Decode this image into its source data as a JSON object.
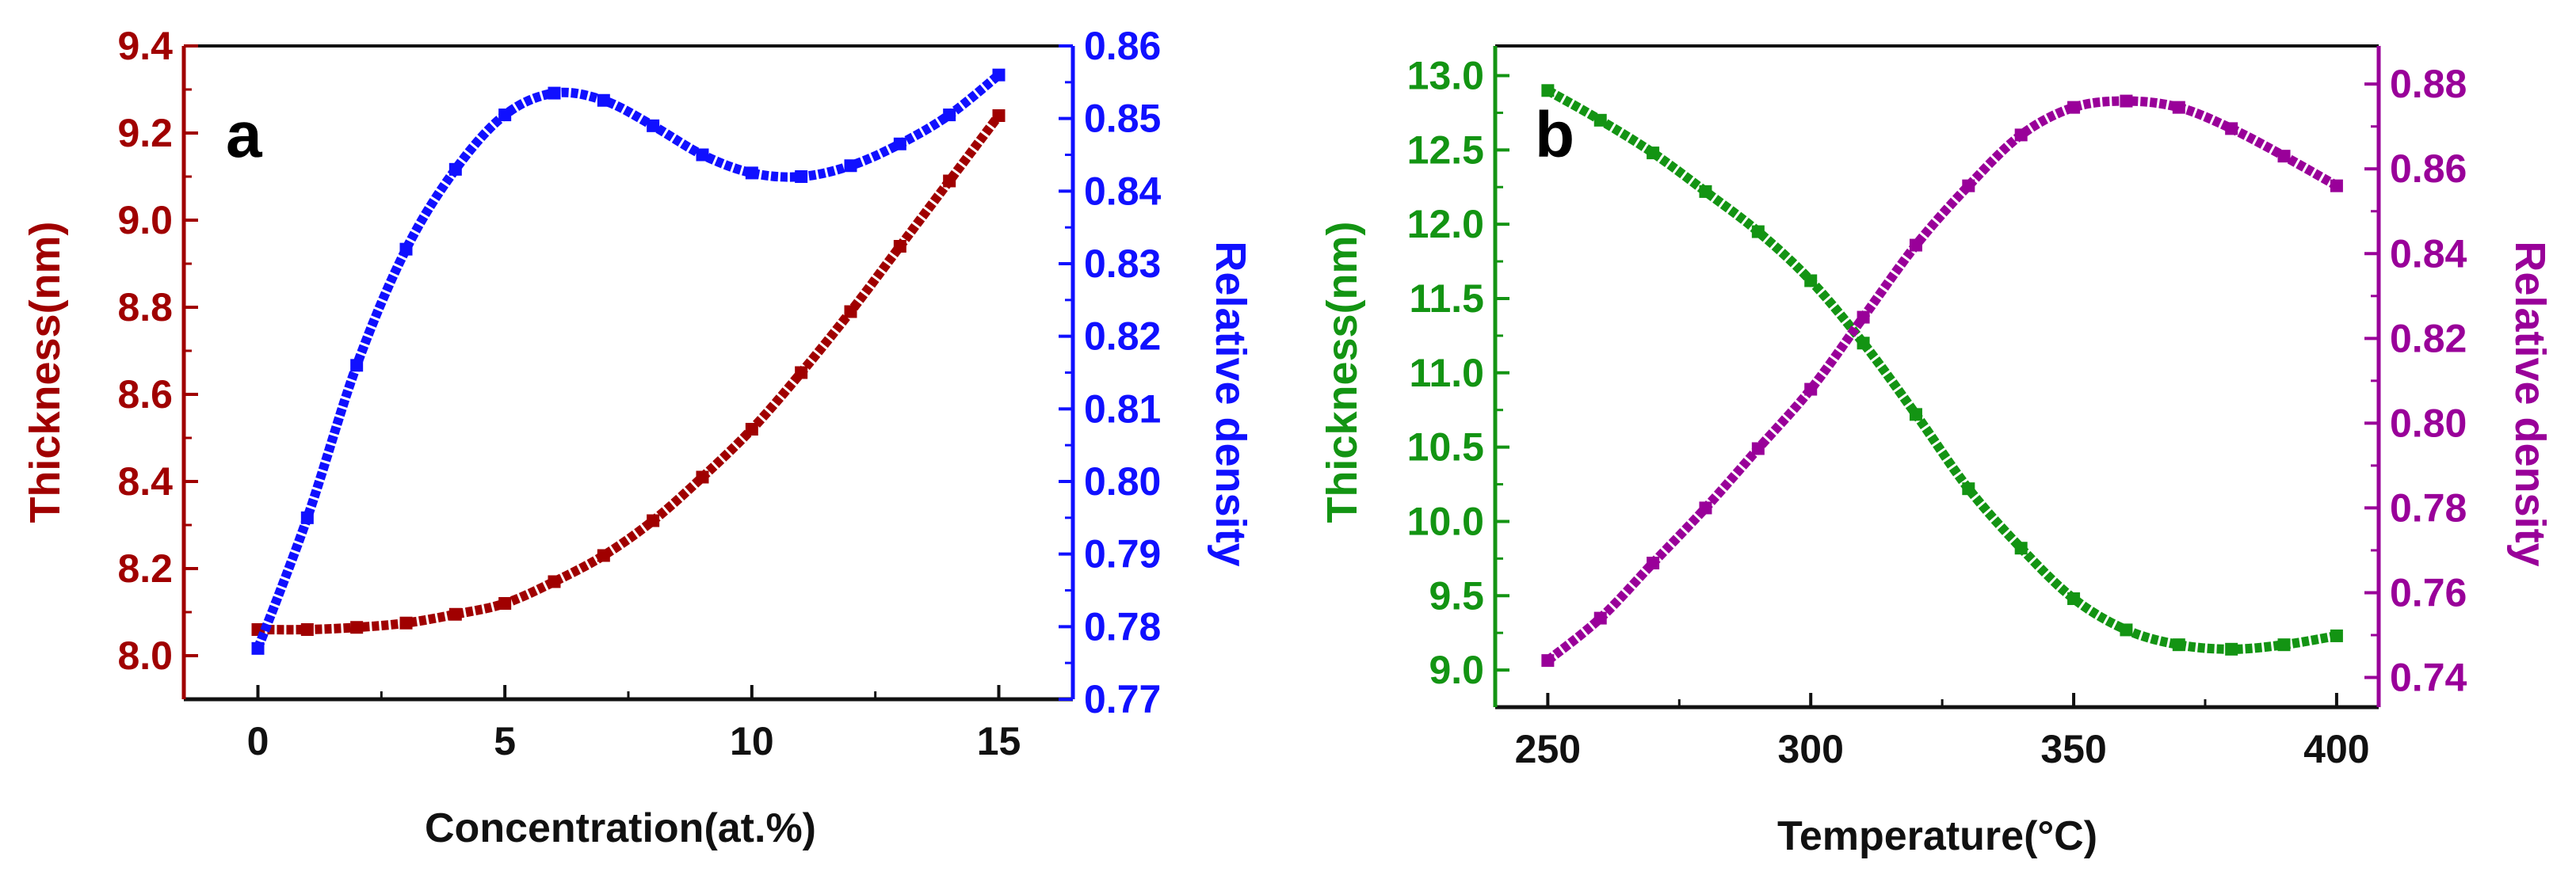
{
  "colors": {
    "a_left": "#a00000",
    "a_right": "#1010ff",
    "b_left": "#139413",
    "b_right": "#990099",
    "axis": "#111111"
  },
  "chart_data": [
    {
      "type": "line",
      "panel_label": "a",
      "xlabel": "Concentration(at.%)",
      "ylabel_left": "Thickness(nm)",
      "ylabel_right": "Relative density",
      "xlim": [
        -1.5,
        16.5
      ],
      "xticks": [
        0,
        5,
        10,
        15
      ],
      "ylim_left": [
        7.9,
        9.4
      ],
      "yticks_left": [
        "8.0",
        "8.2",
        "8.4",
        "8.6",
        "8.8",
        "9.0",
        "9.2",
        "9.4"
      ],
      "ylim_right": [
        0.77,
        0.86
      ],
      "yticks_right": [
        "0.77",
        "0.78",
        "0.79",
        "0.80",
        "0.81",
        "0.82",
        "0.83",
        "0.84",
        "0.85",
        "0.86"
      ],
      "series": [
        {
          "name": "Thickness",
          "axis": "left",
          "color": "#a00000",
          "x": [
            0,
            1,
            2,
            3,
            4,
            5,
            6,
            7,
            8,
            9,
            10,
            11,
            12,
            13,
            14,
            15
          ],
          "y": [
            8.06,
            8.06,
            8.065,
            8.075,
            8.095,
            8.12,
            8.17,
            8.23,
            8.31,
            8.41,
            8.52,
            8.65,
            8.79,
            8.94,
            9.09,
            9.24
          ]
        },
        {
          "name": "Relative density",
          "axis": "right",
          "color": "#1010ff",
          "x": [
            0,
            1,
            2,
            3,
            4,
            5,
            6,
            7,
            8,
            9,
            10,
            11,
            12,
            13,
            14,
            15
          ],
          "y": [
            0.777,
            0.795,
            0.816,
            0.832,
            0.843,
            0.8505,
            0.8535,
            0.8525,
            0.849,
            0.845,
            0.8425,
            0.842,
            0.8435,
            0.8465,
            0.8505,
            0.856
          ]
        }
      ]
    },
    {
      "type": "line",
      "panel_label": "b",
      "xlabel": "Temperature(°C)",
      "ylabel_left": "Thickness(nm)",
      "ylabel_right": "Relative density",
      "xlim": [
        240,
        408
      ],
      "xticks": [
        250,
        300,
        350,
        400
      ],
      "ylim_left": [
        8.75,
        13.2
      ],
      "yticks_left": [
        "9.0",
        "9.5",
        "10.0",
        "10.5",
        "11.0",
        "11.5",
        "12.0",
        "12.5",
        "13.0"
      ],
      "ylim_right": [
        0.733,
        0.889
      ],
      "yticks_right": [
        "0.74",
        "0.76",
        "0.78",
        "0.80",
        "0.82",
        "0.84",
        "0.86",
        "0.88"
      ],
      "series": [
        {
          "name": "Thickness",
          "axis": "left",
          "color": "#139413",
          "x": [
            250,
            260,
            270,
            280,
            290,
            300,
            310,
            320,
            330,
            340,
            350,
            360,
            370,
            380,
            390,
            400
          ],
          "y": [
            12.9,
            12.7,
            12.48,
            12.22,
            11.95,
            11.62,
            11.2,
            10.72,
            10.22,
            9.82,
            9.48,
            9.27,
            9.17,
            9.14,
            9.17,
            9.23
          ]
        },
        {
          "name": "Relative density",
          "axis": "right",
          "color": "#990099",
          "x": [
            250,
            260,
            270,
            280,
            290,
            300,
            310,
            320,
            330,
            340,
            350,
            360,
            370,
            380,
            390,
            400
          ],
          "y": [
            0.744,
            0.754,
            0.767,
            0.78,
            0.794,
            0.808,
            0.825,
            0.842,
            0.856,
            0.868,
            0.8745,
            0.876,
            0.8745,
            0.8695,
            0.863,
            0.856
          ]
        }
      ]
    }
  ]
}
